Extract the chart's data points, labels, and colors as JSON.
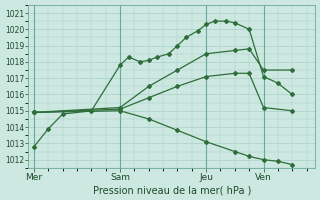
{
  "xlabel": "Pression niveau de la mer( hPa )",
  "bg_color": "#cce8e0",
  "grid_color": "#aacfc8",
  "line_color": "#2d6e3a",
  "ylim": [
    1011.5,
    1021.5
  ],
  "yticks": [
    1012,
    1013,
    1014,
    1015,
    1016,
    1017,
    1018,
    1019,
    1020,
    1021
  ],
  "xtick_labels": [
    "Mer",
    "Sam",
    "Jeu",
    "Ven"
  ],
  "xtick_positions": [
    0,
    3,
    6,
    8
  ],
  "xlim": [
    -0.2,
    9.8
  ],
  "lines": [
    {
      "x": [
        0,
        0.5,
        1.0,
        2.0,
        3.0,
        3.3,
        3.7,
        4.0,
        4.3,
        4.7,
        5.0,
        5.3,
        5.7,
        6.0,
        6.3,
        6.7,
        7.0,
        7.5,
        8.0,
        8.5,
        9.0
      ],
      "y": [
        1012.8,
        1013.9,
        1014.8,
        1015.0,
        1017.8,
        1018.3,
        1018.0,
        1018.1,
        1018.3,
        1018.5,
        1019.0,
        1019.5,
        1019.9,
        1020.3,
        1020.5,
        1020.5,
        1020.4,
        1020.0,
        1017.1,
        1016.7,
        1016.0
      ]
    },
    {
      "x": [
        0,
        3.0,
        4.0,
        5.0,
        6.0,
        7.0,
        7.5,
        8.0,
        9.0
      ],
      "y": [
        1014.9,
        1015.2,
        1016.5,
        1017.5,
        1018.5,
        1018.7,
        1018.8,
        1017.5,
        1017.5
      ]
    },
    {
      "x": [
        0,
        3.0,
        4.0,
        5.0,
        6.0,
        7.0,
        7.5,
        8.0,
        9.0
      ],
      "y": [
        1014.9,
        1015.1,
        1015.8,
        1016.5,
        1017.1,
        1017.3,
        1017.3,
        1015.2,
        1015.0
      ]
    },
    {
      "x": [
        0,
        3.0,
        4.0,
        5.0,
        6.0,
        7.0,
        7.5,
        8.0,
        8.5,
        9.0
      ],
      "y": [
        1014.9,
        1015.0,
        1014.5,
        1013.8,
        1013.1,
        1012.5,
        1012.2,
        1012.0,
        1011.9,
        1011.7
      ]
    }
  ]
}
